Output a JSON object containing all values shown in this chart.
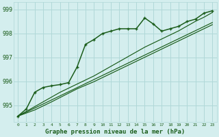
{
  "title": "Graphe pression niveau de la mer (hPa)",
  "bg_color": "#d4eeee",
  "grid_color": "#b0d8d8",
  "line_color_main": "#1a5c1a",
  "xlim": [
    -0.5,
    23.5
  ],
  "ylim": [
    994.3,
    999.3
  ],
  "yticks": [
    995,
    996,
    997,
    998,
    999
  ],
  "xticks": [
    0,
    1,
    2,
    3,
    4,
    5,
    6,
    7,
    8,
    9,
    10,
    11,
    12,
    13,
    14,
    15,
    16,
    17,
    18,
    19,
    20,
    21,
    22,
    23
  ],
  "series_main": [
    994.55,
    994.85,
    995.55,
    995.75,
    995.82,
    995.87,
    995.95,
    996.6,
    997.55,
    997.75,
    998.0,
    998.1,
    998.2,
    998.2,
    998.2,
    998.65,
    998.4,
    998.1,
    998.2,
    998.3,
    998.5,
    998.6,
    998.85,
    998.95
  ],
  "series_linear1": [
    994.55,
    994.72,
    994.89,
    995.06,
    995.23,
    995.4,
    995.57,
    995.74,
    995.91,
    996.08,
    996.25,
    996.42,
    996.59,
    996.76,
    996.93,
    997.1,
    997.27,
    997.44,
    997.61,
    997.78,
    997.95,
    998.12,
    998.29,
    998.46
  ],
  "series_linear2": [
    994.55,
    994.75,
    994.95,
    995.15,
    995.35,
    995.55,
    995.72,
    995.89,
    996.06,
    996.23,
    996.43,
    996.63,
    996.83,
    997.03,
    997.23,
    997.43,
    997.6,
    997.77,
    997.94,
    998.11,
    998.31,
    998.51,
    998.68,
    998.88
  ],
  "series_linear3": [
    994.55,
    994.68,
    994.81,
    994.98,
    995.15,
    995.33,
    995.51,
    995.69,
    995.84,
    995.99,
    996.16,
    996.33,
    996.5,
    996.67,
    996.84,
    997.01,
    997.18,
    997.35,
    997.52,
    997.69,
    997.86,
    998.03,
    998.2,
    998.37
  ]
}
